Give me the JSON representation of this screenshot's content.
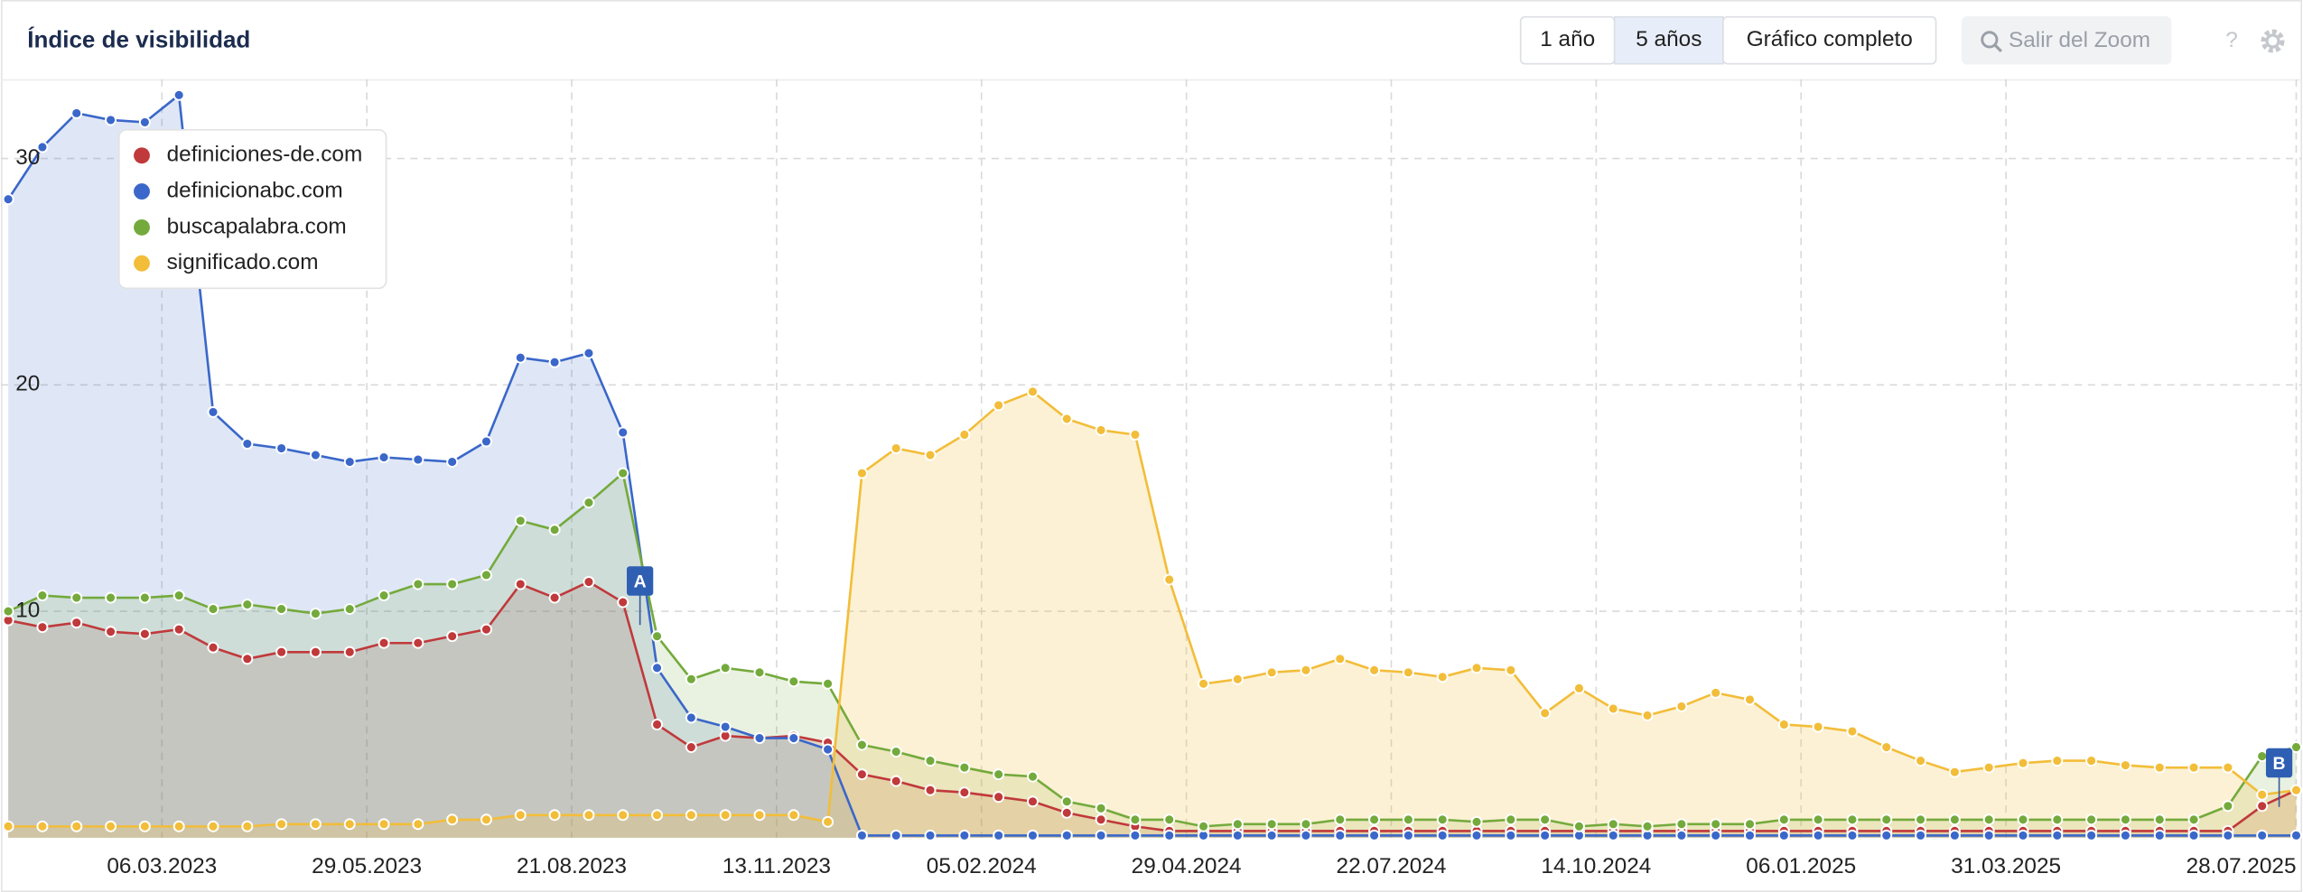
{
  "header": {
    "title": "Índice de visibilidad",
    "range_buttons": [
      "1 año",
      "5 años",
      "Gráfico completo"
    ],
    "active_range": 1,
    "zoom_button": "Salir del Zoom",
    "help": "?"
  },
  "chart_data": {
    "type": "area",
    "x": [
      "2023-01-02",
      "2023-01-16",
      "2023-01-30",
      "2023-02-13",
      "2023-02-27",
      "2023-03-13",
      "2023-03-27",
      "2023-04-10",
      "2023-04-24",
      "2023-05-08",
      "2023-05-22",
      "2023-06-05",
      "2023-06-19",
      "2023-07-03",
      "2023-07-17",
      "2023-07-31",
      "2023-08-14",
      "2023-08-28",
      "2023-09-11",
      "2023-09-25",
      "2023-10-09",
      "2023-10-23",
      "2023-11-06",
      "2023-11-20",
      "2023-12-04",
      "2023-12-18",
      "2024-01-01",
      "2024-01-15",
      "2024-01-29",
      "2024-02-12",
      "2024-02-26",
      "2024-03-11",
      "2024-03-25",
      "2024-04-08",
      "2024-04-22",
      "2024-05-06",
      "2024-05-20",
      "2024-06-03",
      "2024-06-17",
      "2024-07-01",
      "2024-07-15",
      "2024-07-29",
      "2024-08-12",
      "2024-08-26",
      "2024-09-09",
      "2024-09-23",
      "2024-10-07",
      "2024-10-21",
      "2024-11-04",
      "2024-11-18",
      "2024-12-02",
      "2024-12-16",
      "2024-12-30",
      "2025-01-13",
      "2025-01-27",
      "2025-02-10",
      "2025-02-24",
      "2025-03-10",
      "2025-03-24",
      "2025-04-07",
      "2025-04-21",
      "2025-05-05",
      "2025-05-19",
      "2025-06-02",
      "2025-06-16",
      "2025-06-30",
      "2025-07-14",
      "2025-07-28"
    ],
    "xlim": [
      "2023-01-02",
      "2025-07-28"
    ],
    "xticks": [
      "06.03.2023",
      "29.05.2023",
      "21.08.2023",
      "13.11.2023",
      "05.02.2024",
      "29.04.2024",
      "22.07.2024",
      "14.10.2024",
      "06.01.2025",
      "31.03.2025",
      "28.07.2025"
    ],
    "ylim": [
      0,
      33.5
    ],
    "yticks": [
      10,
      20,
      30
    ],
    "grid": true,
    "legend": "top-left",
    "series": [
      {
        "name": "definiciones-de.com",
        "color": "#c0393b",
        "values": [
          9.6,
          9.3,
          9.5,
          9.1,
          9.0,
          9.2,
          8.4,
          7.9,
          8.2,
          8.2,
          8.2,
          8.6,
          8.6,
          8.9,
          9.2,
          11.2,
          10.6,
          11.3,
          10.4,
          5.0,
          4.0,
          4.5,
          4.4,
          4.5,
          4.2,
          2.8,
          2.5,
          2.1,
          2.0,
          1.8,
          1.6,
          1.1,
          0.8,
          0.5,
          0.3,
          0.3,
          0.3,
          0.3,
          0.3,
          0.3,
          0.3,
          0.3,
          0.3,
          0.3,
          0.3,
          0.3,
          0.3,
          0.3,
          0.3,
          0.3,
          0.3,
          0.3,
          0.3,
          0.3,
          0.3,
          0.3,
          0.3,
          0.3,
          0.3,
          0.3,
          0.3,
          0.3,
          0.3,
          0.3,
          0.3,
          0.3,
          1.4,
          2.1
        ]
      },
      {
        "name": "definicionabc.com",
        "color": "#3a67c9",
        "values": [
          28.2,
          30.5,
          32.0,
          31.7,
          31.6,
          32.8,
          18.8,
          17.4,
          17.2,
          16.9,
          16.6,
          16.8,
          16.7,
          16.6,
          17.5,
          21.2,
          21.0,
          21.4,
          17.9,
          7.5,
          5.3,
          4.9,
          4.4,
          4.4,
          3.9,
          0.1,
          0.1,
          0.1,
          0.1,
          0.1,
          0.1,
          0.1,
          0.1,
          0.1,
          0.1,
          0.1,
          0.1,
          0.1,
          0.1,
          0.1,
          0.1,
          0.1,
          0.1,
          0.1,
          0.1,
          0.1,
          0.1,
          0.1,
          0.1,
          0.1,
          0.1,
          0.1,
          0.1,
          0.1,
          0.1,
          0.1,
          0.1,
          0.1,
          0.1,
          0.1,
          0.1,
          0.1,
          0.1,
          0.1,
          0.1,
          0.1,
          0.1,
          0.1
        ]
      },
      {
        "name": "buscapalabra.com",
        "color": "#74aa3c",
        "values": [
          10.0,
          10.7,
          10.6,
          10.6,
          10.6,
          10.7,
          10.1,
          10.3,
          10.1,
          9.9,
          10.1,
          10.7,
          11.2,
          11.2,
          11.6,
          14.0,
          13.6,
          14.8,
          16.1,
          8.9,
          7.0,
          7.5,
          7.3,
          6.9,
          6.8,
          4.1,
          3.8,
          3.4,
          3.1,
          2.8,
          2.7,
          1.6,
          1.3,
          0.8,
          0.8,
          0.5,
          0.6,
          0.6,
          0.6,
          0.8,
          0.8,
          0.8,
          0.8,
          0.7,
          0.8,
          0.8,
          0.5,
          0.6,
          0.5,
          0.6,
          0.6,
          0.6,
          0.8,
          0.8,
          0.8,
          0.8,
          0.8,
          0.8,
          0.8,
          0.8,
          0.8,
          0.8,
          0.8,
          0.8,
          0.8,
          1.4,
          3.6,
          4.0
        ]
      },
      {
        "name": "significado.com",
        "color": "#f2bd39",
        "values": [
          0.5,
          0.5,
          0.5,
          0.5,
          0.5,
          0.5,
          0.5,
          0.5,
          0.6,
          0.6,
          0.6,
          0.6,
          0.6,
          0.8,
          0.8,
          1.0,
          1.0,
          1.0,
          1.0,
          1.0,
          1.0,
          1.0,
          1.0,
          1.0,
          0.7,
          16.1,
          17.2,
          16.9,
          17.8,
          19.1,
          19.7,
          18.5,
          18.0,
          17.8,
          11.4,
          6.8,
          7.0,
          7.3,
          7.4,
          7.9,
          7.4,
          7.3,
          7.1,
          7.5,
          7.4,
          5.5,
          6.6,
          5.7,
          5.4,
          5.8,
          6.4,
          6.1,
          5.0,
          4.9,
          4.7,
          4.0,
          3.4,
          2.9,
          3.1,
          3.3,
          3.4,
          3.4,
          3.2,
          3.1,
          3.1,
          3.1,
          1.9,
          2.1
        ]
      }
    ],
    "annotations": [
      {
        "label": "A",
        "x": "2023-09-18"
      },
      {
        "label": "B",
        "x": "2025-07-21"
      }
    ]
  }
}
